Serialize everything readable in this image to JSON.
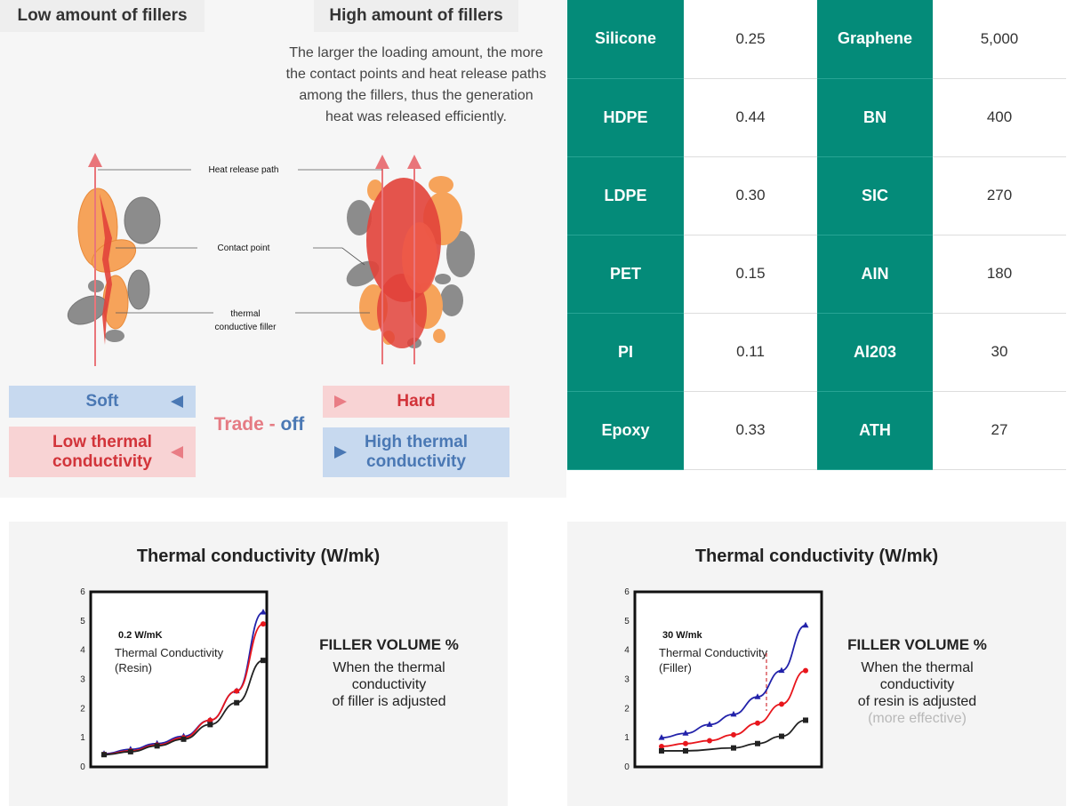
{
  "tabs": {
    "low": "Low amount of fillers",
    "high": "High amount of fillers"
  },
  "description": [
    "The larger the loading amount, the more",
    "the contact points and heat release paths",
    "among the fillers, thus the generation",
    "heat was released efficiently."
  ],
  "diagram_labels": {
    "heat_path": "Heat release path",
    "contact_point": "Contact point",
    "filler_1": "thermal",
    "filler_2": "conductive filler"
  },
  "tradeoff": {
    "soft": "Soft",
    "hard": "Hard",
    "low_1": "Low thermal",
    "low_2": "conductivity",
    "high_1": "High thermal",
    "high_2": "conductivity",
    "trade": "Trade",
    "dash": " - ",
    "off": "off"
  },
  "colors": {
    "teal": "#048b79",
    "blue": "#4a78b4",
    "red": "#d2343a",
    "filler_orange": "#f6a35a",
    "filler_gray": "#8c8c8c",
    "path_red": "#e2423a"
  },
  "materials": [
    {
      "left_name": "Silicone",
      "left_value": "0.25",
      "right_name": "Graphene",
      "right_value": "5,000"
    },
    {
      "left_name": "HDPE",
      "left_value": "0.44",
      "right_name": "BN",
      "right_value": "400"
    },
    {
      "left_name": "LDPE",
      "left_value": "0.30",
      "right_name": "SIC",
      "right_value": "270"
    },
    {
      "left_name": "PET",
      "left_value": "0.15",
      "right_name": "AIN",
      "right_value": "180"
    },
    {
      "left_name": "PI",
      "left_value": "0.11",
      "right_name": "Al203",
      "right_value": "30"
    },
    {
      "left_name": "Epoxy",
      "left_value": "0.33",
      "right_name": "ATH",
      "right_value": "27"
    }
  ],
  "chart_data": [
    {
      "type": "line",
      "title": "Thermal conductivity (W/mk)",
      "ylim": [
        0,
        6
      ],
      "yticks": [
        "0",
        "1",
        "2",
        "3",
        "4",
        "5",
        "6"
      ],
      "annotation": {
        "value": "0.2 W/mK",
        "line1": "Thermal Conductivity",
        "line2": "(Resin)"
      },
      "series": [
        {
          "color": "#2222aa",
          "marker": "triangle",
          "x": [
            0,
            1,
            2,
            3,
            4,
            5,
            6
          ],
          "values": [
            0.45,
            0.6,
            0.8,
            1.05,
            1.6,
            2.6,
            5.3
          ]
        },
        {
          "color": "#e8161c",
          "marker": "circle",
          "x": [
            0,
            1,
            2,
            3,
            4,
            5,
            6
          ],
          "values": [
            0.43,
            0.55,
            0.75,
            1.0,
            1.6,
            2.6,
            4.9
          ]
        },
        {
          "color": "#222222",
          "marker": "square",
          "x": [
            0,
            1,
            2,
            3,
            4,
            5,
            6
          ],
          "values": [
            0.42,
            0.52,
            0.72,
            0.95,
            1.45,
            2.2,
            3.65
          ]
        }
      ],
      "side_note": {
        "head": "FILLER VOLUME %",
        "lines": [
          "When the thermal",
          "conductivity",
          "of filler is adjusted"
        ]
      }
    },
    {
      "type": "line",
      "title": "Thermal conductivity (W/mk)",
      "ylim": [
        0,
        6
      ],
      "yticks": [
        "0",
        "1",
        "2",
        "3",
        "4",
        "5",
        "6"
      ],
      "annotation": {
        "value": "30 W/mk",
        "line1": "Thermal Conductivity",
        "line2": "(Filler)"
      },
      "series": [
        {
          "color": "#2222aa",
          "marker": "triangle",
          "x": [
            0,
            1,
            2,
            3,
            4,
            5,
            6
          ],
          "values": [
            1.0,
            1.15,
            1.45,
            1.8,
            2.4,
            3.3,
            4.85
          ]
        },
        {
          "color": "#e8161c",
          "marker": "circle",
          "x": [
            0,
            1,
            2,
            3,
            4,
            5,
            6
          ],
          "values": [
            0.7,
            0.8,
            0.9,
            1.1,
            1.5,
            2.15,
            3.3
          ]
        },
        {
          "color": "#222222",
          "marker": "square",
          "x": [
            0,
            1,
            3,
            4,
            5,
            6
          ],
          "values": [
            0.55,
            0.55,
            0.65,
            0.8,
            1.05,
            1.6
          ]
        }
      ],
      "side_note": {
        "head": "FILLER VOLUME %",
        "lines": [
          "When the thermal",
          "conductivity",
          "of resin is adjusted"
        ],
        "extra": "(more effective)"
      }
    }
  ]
}
